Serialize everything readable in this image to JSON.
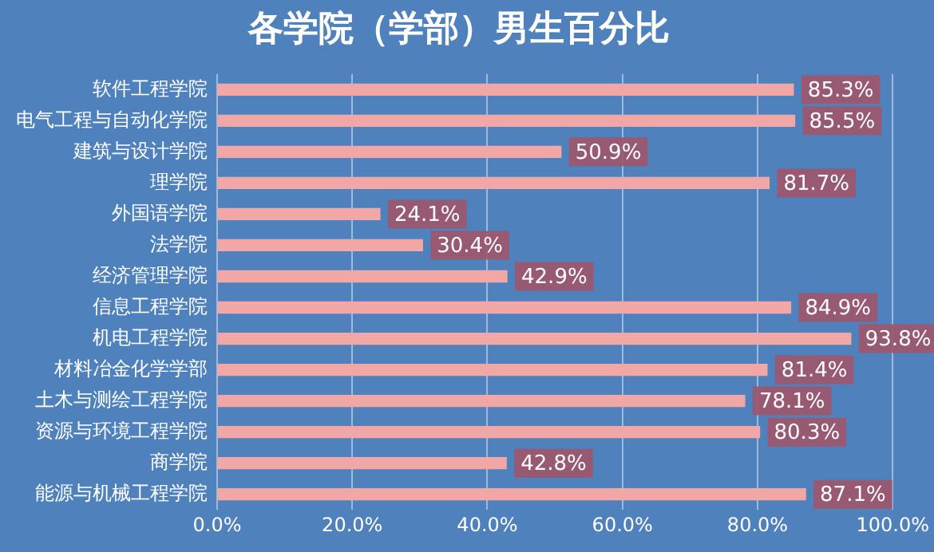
{
  "chart_data": {
    "type": "bar",
    "orientation": "horizontal",
    "title": "各学院（学部）男生百分比",
    "categories": [
      "软件工程学院",
      "电气工程与自动化学院",
      "建筑与设计学院",
      "理学院",
      "外国语学院",
      "法学院",
      "经济管理学院",
      "信息工程学院",
      "机电工程学院",
      "材料冶金化学学部",
      "土木与测绘工程学院",
      "资源与环境工程学院",
      "商学院",
      "能源与机械工程学院"
    ],
    "values": [
      85.3,
      85.5,
      50.9,
      81.7,
      24.1,
      30.4,
      42.9,
      84.9,
      93.8,
      81.4,
      78.1,
      80.3,
      42.8,
      87.1
    ],
    "value_labels": [
      "85.3%",
      "85.5%",
      "50.9%",
      "81.7%",
      "24.1%",
      "30.4%",
      "42.9%",
      "84.9%",
      "93.8%",
      "81.4%",
      "78.1%",
      "80.3%",
      "42.8%",
      "87.1%"
    ],
    "color": "#f2a7a7",
    "xlim": [
      0,
      100
    ],
    "xticks": [
      {
        "value": 0,
        "label": "0.0%"
      },
      {
        "value": 20,
        "label": "20.0%"
      },
      {
        "value": 40,
        "label": "40.0%"
      },
      {
        "value": 60,
        "label": "60.0%"
      },
      {
        "value": 80,
        "label": "80.0%"
      },
      {
        "value": 100,
        "label": "100.0%"
      }
    ],
    "grid": "x",
    "legend": false
  }
}
